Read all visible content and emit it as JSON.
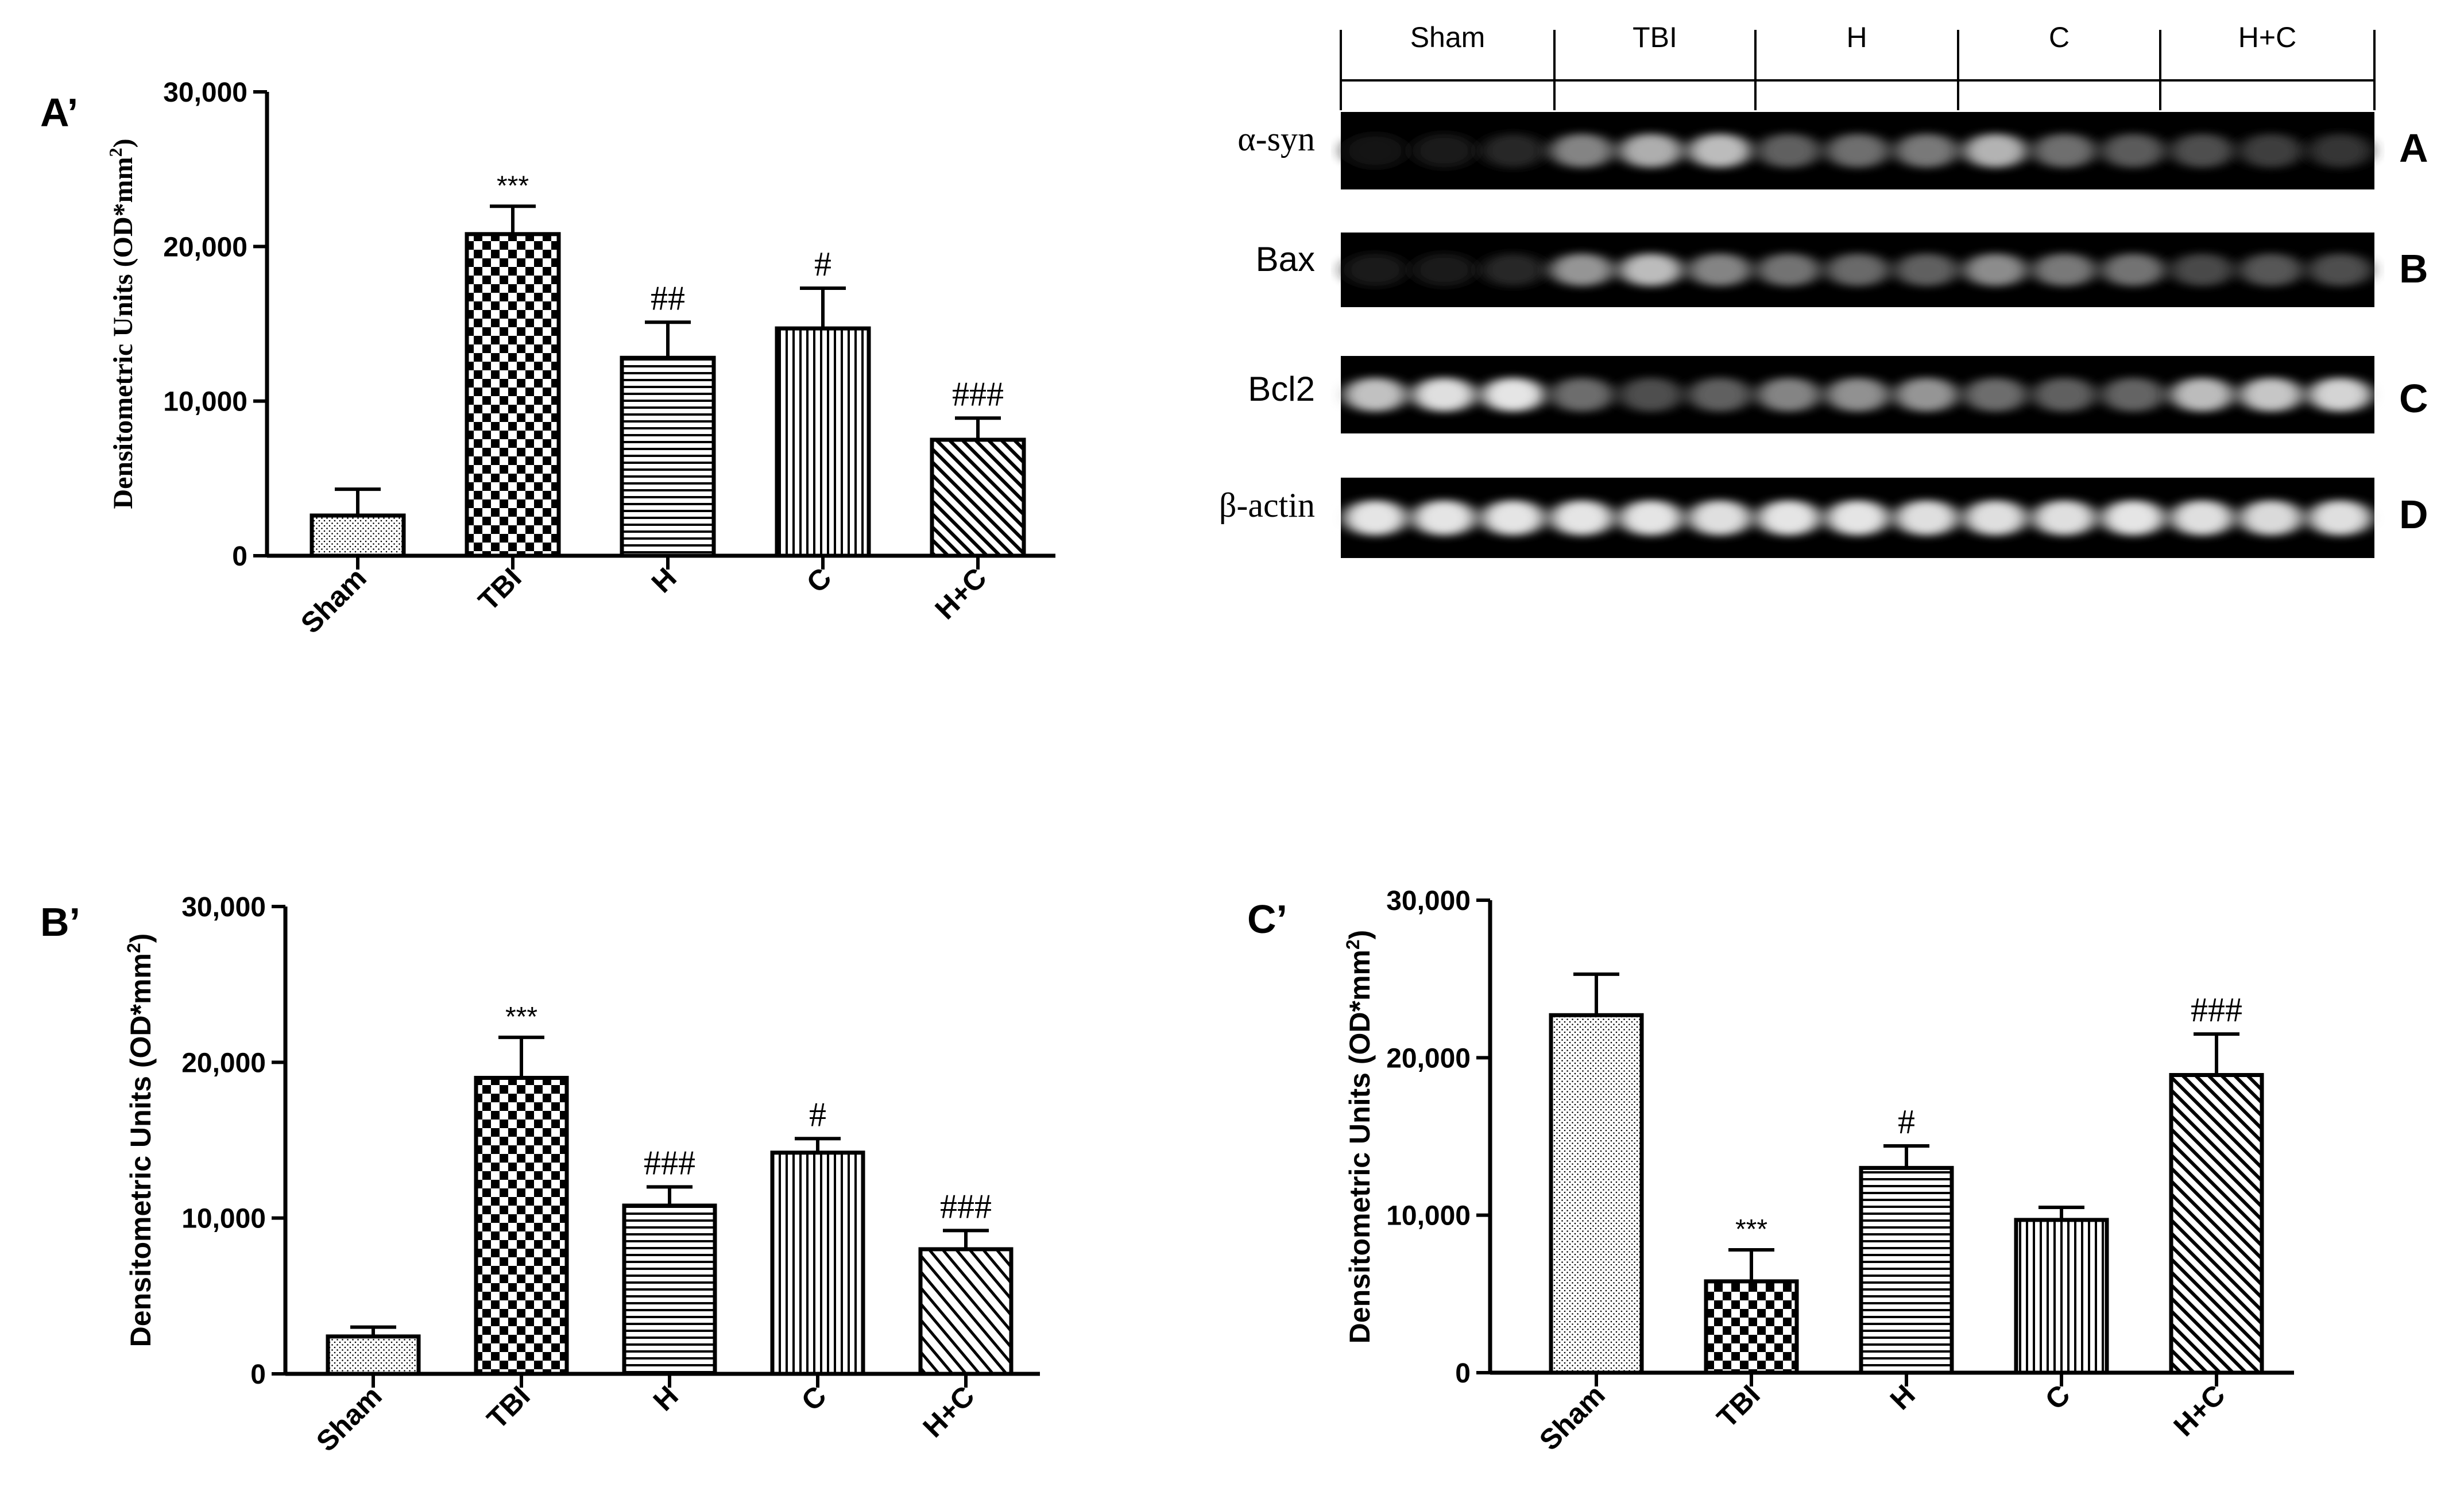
{
  "blot": {
    "groups": [
      "Sham",
      "TBI",
      "H",
      "C",
      "H+C"
    ],
    "rows": [
      {
        "label": "α-syn",
        "letter": "A",
        "intensities": [
          0.08,
          0.1,
          0.16,
          0.55,
          0.72,
          0.78,
          0.4,
          0.46,
          0.5,
          0.74,
          0.46,
          0.38,
          0.32,
          0.26,
          0.22
        ]
      },
      {
        "label": "Bax",
        "letter": "B",
        "intensities": [
          0.12,
          0.1,
          0.16,
          0.62,
          0.78,
          0.55,
          0.48,
          0.44,
          0.4,
          0.58,
          0.5,
          0.48,
          0.3,
          0.36,
          0.32
        ]
      },
      {
        "label": "Bcl2",
        "letter": "C",
        "intensities": [
          0.8,
          0.92,
          0.95,
          0.45,
          0.32,
          0.4,
          0.55,
          0.6,
          0.62,
          0.45,
          0.4,
          0.42,
          0.78,
          0.82,
          0.88
        ]
      },
      {
        "label": "β-actin",
        "letter": "D",
        "intensities": [
          0.95,
          0.95,
          0.95,
          0.95,
          0.95,
          0.92,
          0.95,
          0.95,
          0.92,
          0.92,
          0.92,
          0.95,
          0.92,
          0.9,
          0.92
        ]
      }
    ]
  },
  "chart_data": [
    {
      "panel": "A’",
      "type": "bar",
      "categories": [
        "Sham",
        "TBI",
        "H",
        "C",
        "H+C"
      ],
      "values": [
        2600,
        20800,
        12800,
        14700,
        7500
      ],
      "errors": [
        1700,
        1800,
        2300,
        2600,
        1400
      ],
      "significance": [
        "",
        "***",
        "##",
        "#",
        "###"
      ],
      "patterns": [
        "dots",
        "checker",
        "hlines",
        "vlines",
        "diag"
      ],
      "ylabel": "Densitometric Units (OD*mm2)",
      "ylim": [
        0,
        30000
      ],
      "yticks": [
        "0",
        "10,000",
        "20,000",
        "30,000"
      ],
      "ylabel_font": "serif"
    },
    {
      "panel": "B’",
      "type": "bar",
      "categories": [
        "Sham",
        "TBI",
        "H",
        "C",
        "H+C"
      ],
      "values": [
        2400,
        19000,
        10800,
        14200,
        8000
      ],
      "errors": [
        600,
        2600,
        1200,
        900,
        1200
      ],
      "significance": [
        "",
        "***",
        "###",
        "#",
        "###"
      ],
      "patterns": [
        "dots",
        "checker",
        "hlines",
        "vlines",
        "diag2"
      ],
      "ylabel": "Densitometric Units (OD*mm2)",
      "ylim": [
        0,
        30000
      ],
      "yticks": [
        "0",
        "10,000",
        "20,000",
        "30,000"
      ],
      "ylabel_font": "sans"
    },
    {
      "panel": "C’",
      "type": "bar",
      "categories": [
        "Sham",
        "TBI",
        "H",
        "C",
        "H+C"
      ],
      "values": [
        22700,
        5800,
        13000,
        9700,
        18900
      ],
      "errors": [
        2600,
        2000,
        1400,
        800,
        2600
      ],
      "significance": [
        "",
        "***",
        "#",
        "",
        "###"
      ],
      "patterns": [
        "dots",
        "checker",
        "hlines",
        "vlines",
        "diag"
      ],
      "ylabel": "Densitometric Units (OD*mm2)",
      "ylim": [
        0,
        30000
      ],
      "yticks": [
        "0",
        "10,000",
        "20,000",
        "30,000"
      ],
      "ylabel_font": "sans"
    }
  ]
}
